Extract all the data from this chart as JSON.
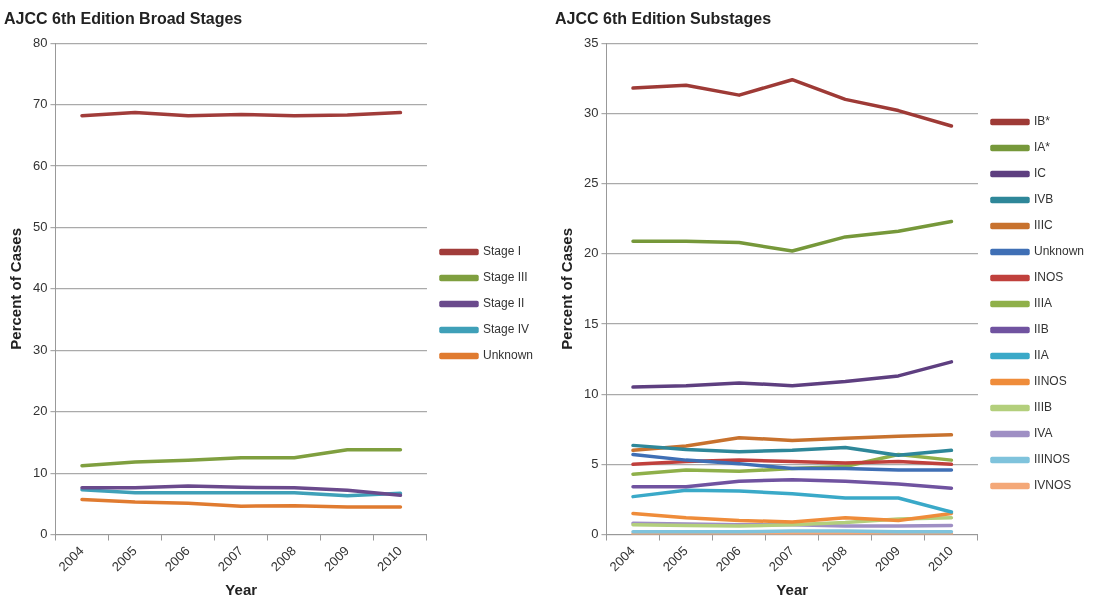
{
  "chart_data": [
    {
      "type": "line",
      "title": "AJCC 6th Edition Broad Stages",
      "xlabel": "Year",
      "ylabel": "Percent of Cases",
      "categories": [
        "2004",
        "2005",
        "2006",
        "2007",
        "2008",
        "2009",
        "2010"
      ],
      "ylim": [
        0,
        80
      ],
      "yticks": [
        0,
        10,
        20,
        30,
        40,
        50,
        60,
        70,
        80
      ],
      "grid": "y",
      "legend": "right",
      "marker": "none",
      "line_style": "solid",
      "series": [
        {
          "name": "Stage I",
          "color": "#a13c3a",
          "values": [
            68.2,
            68.7,
            68.2,
            68.4,
            68.2,
            68.3,
            68.7
          ]
        },
        {
          "name": "Stage III",
          "color": "#7f9f3f",
          "values": [
            11.2,
            11.8,
            12.1,
            12.5,
            12.5,
            13.8,
            13.8
          ]
        },
        {
          "name": "Stage II",
          "color": "#6a4a8c",
          "values": [
            7.6,
            7.6,
            7.9,
            7.7,
            7.6,
            7.2,
            6.4
          ]
        },
        {
          "name": "Stage IV",
          "color": "#3fa0b8",
          "values": [
            7.3,
            6.8,
            6.8,
            6.8,
            6.8,
            6.3,
            6.7
          ]
        },
        {
          "name": "Unknown",
          "color": "#e07b30",
          "values": [
            5.7,
            5.3,
            5.1,
            4.6,
            4.7,
            4.5,
            4.5
          ]
        }
      ]
    },
    {
      "type": "line",
      "title": "AJCC 6th Edition Substages",
      "xlabel": "Year",
      "ylabel": "Percent of Cases",
      "categories": [
        "2004",
        "2005",
        "2006",
        "2007",
        "2008",
        "2009",
        "2010"
      ],
      "ylim": [
        0,
        35
      ],
      "yticks": [
        0,
        5,
        10,
        15,
        20,
        25,
        30,
        35
      ],
      "grid": "y",
      "legend": "right",
      "marker": "none",
      "line_style": "solid",
      "series": [
        {
          "name": "IB*",
          "color": "#9e3a36",
          "values": [
            31.8,
            32.0,
            31.3,
            32.4,
            31.0,
            30.2,
            29.1
          ]
        },
        {
          "name": "IA*",
          "color": "#76983a",
          "values": [
            20.9,
            20.9,
            20.8,
            20.2,
            21.2,
            21.6,
            22.3
          ]
        },
        {
          "name": "IC",
          "color": "#5e3f80",
          "values": [
            10.5,
            10.6,
            10.8,
            10.6,
            10.9,
            11.3,
            12.3
          ]
        },
        {
          "name": "IVB",
          "color": "#2e8799",
          "values": [
            6.35,
            6.05,
            5.9,
            6.0,
            6.2,
            5.65,
            6.0
          ]
        },
        {
          "name": "IIIC",
          "color": "#c8722e",
          "values": [
            6.0,
            6.3,
            6.9,
            6.7,
            6.85,
            7.0,
            7.1
          ]
        },
        {
          "name": "Unknown",
          "color": "#3f6fb5",
          "values": [
            5.7,
            5.3,
            5.05,
            4.7,
            4.7,
            4.6,
            4.6
          ]
        },
        {
          "name": "INOS",
          "color": "#c0403c",
          "values": [
            5.0,
            5.2,
            5.3,
            5.2,
            5.1,
            5.2,
            5.0
          ]
        },
        {
          "name": "IIIA",
          "color": "#8fb04a",
          "values": [
            4.3,
            4.6,
            4.5,
            4.7,
            4.85,
            5.7,
            5.3
          ]
        },
        {
          "name": "IIB",
          "color": "#7053a0",
          "values": [
            3.4,
            3.4,
            3.8,
            3.9,
            3.8,
            3.6,
            3.3
          ]
        },
        {
          "name": "IIA",
          "color": "#3aa9c8",
          "values": [
            2.7,
            3.15,
            3.1,
            2.9,
            2.6,
            2.6,
            1.6
          ]
        },
        {
          "name": "IINOS",
          "color": "#ef8c3a",
          "values": [
            1.5,
            1.2,
            1.0,
            0.9,
            1.2,
            1.0,
            1.5
          ]
        },
        {
          "name": "IIIB",
          "color": "#b3cf7c",
          "values": [
            0.7,
            0.65,
            0.6,
            0.7,
            0.85,
            1.1,
            1.2
          ]
        },
        {
          "name": "IVA",
          "color": "#9f8fc4",
          "values": [
            0.8,
            0.75,
            0.7,
            0.7,
            0.6,
            0.6,
            0.65
          ]
        },
        {
          "name": "IIINOS",
          "color": "#7fc3dc",
          "values": [
            0.2,
            0.2,
            0.2,
            0.25,
            0.25,
            0.2,
            0.2
          ]
        },
        {
          "name": "IVNOS",
          "color": "#f4a878",
          "values": [
            0.05,
            0.05,
            0.05,
            0.05,
            0.05,
            0.05,
            0.05
          ]
        }
      ]
    }
  ]
}
